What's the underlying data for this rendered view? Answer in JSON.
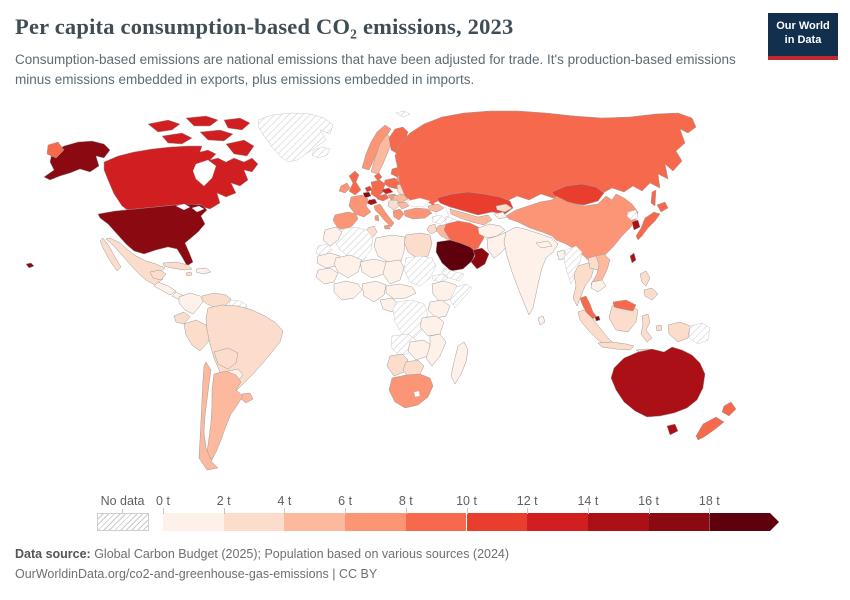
{
  "header": {
    "title": "Per capita consumption-based CO₂ emissions, 2023",
    "subtitle": "Consumption-based emissions are national emissions that have been adjusted for trade. It's production-based emissions minus emissions embedded in exports, plus emissions embedded in imports.",
    "logo": {
      "line1": "Our World",
      "line2": "in Data",
      "bg_color": "#12304e",
      "accent_color": "#c0282d"
    }
  },
  "chart_data": {
    "type": "choropleth_map",
    "title": "Per capita consumption-based CO₂ emissions, 2023",
    "unit": "t",
    "legend": {
      "no_data_label": "No data",
      "tick_labels": [
        "0 t",
        "2 t",
        "4 t",
        "6 t",
        "8 t",
        "10 t",
        "12 t",
        "14 t",
        "16 t",
        "18 t"
      ],
      "bin_ranges": [
        "0–2 t",
        "2–4 t",
        "4–6 t",
        "6–8 t",
        "8–10 t",
        "10–12 t",
        "12–14 t",
        "14–16 t",
        "16–18 t",
        "18+ t"
      ],
      "bin_colors": [
        "#fef1e9",
        "#fcdccb",
        "#fcb99e",
        "#fc9576",
        "#f7694c",
        "#e93e2e",
        "#d11e21",
        "#ab1016",
        "#8b0a12",
        "#5f000d"
      ],
      "open_ended_arrow": true,
      "no_data_pattern": "gray-diagonal-hatch"
    },
    "countries": [
      {
        "id": "usa",
        "name": "United States",
        "bin": 9
      },
      {
        "id": "canada",
        "name": "Canada",
        "bin": 7
      },
      {
        "id": "greenland",
        "name": "Greenland",
        "bin": "nodata"
      },
      {
        "id": "iceland",
        "name": "Iceland",
        "bin": "nodata"
      },
      {
        "id": "svalbard",
        "name": "Svalbard",
        "bin": "nodata"
      },
      {
        "id": "mexico",
        "name": "Mexico",
        "bin": 2
      },
      {
        "id": "guatemala",
        "name": "Guatemala",
        "bin": 1
      },
      {
        "id": "central-america",
        "name": "Honduras/Nicaragua",
        "bin": 1
      },
      {
        "id": "panama",
        "name": "Panama/Costa Rica",
        "bin": 3
      },
      {
        "id": "cuba",
        "name": "Cuba",
        "bin": 2
      },
      {
        "id": "hispaniola",
        "name": "Dominican Republic/Haiti",
        "bin": 1
      },
      {
        "id": "jamaica",
        "name": "Jamaica",
        "bin": 2
      },
      {
        "id": "colombia",
        "name": "Colombia",
        "bin": 1
      },
      {
        "id": "venezuela",
        "name": "Venezuela",
        "bin": 2
      },
      {
        "id": "guyanas",
        "name": "Guyana/Suriname",
        "bin": "nodata"
      },
      {
        "id": "ecuador",
        "name": "Ecuador",
        "bin": 2
      },
      {
        "id": "peru",
        "name": "Peru",
        "bin": 2
      },
      {
        "id": "brazil",
        "name": "Brazil",
        "bin": 2
      },
      {
        "id": "bolivia",
        "name": "Bolivia",
        "bin": 2
      },
      {
        "id": "paraguay",
        "name": "Paraguay",
        "bin": 1
      },
      {
        "id": "uruguay",
        "name": "Uruguay",
        "bin": 3
      },
      {
        "id": "argentina",
        "name": "Argentina",
        "bin": 3
      },
      {
        "id": "chile",
        "name": "Chile",
        "bin": 3
      },
      {
        "id": "norway",
        "name": "Norway",
        "bin": 4
      },
      {
        "id": "sweden",
        "name": "Sweden",
        "bin": 3
      },
      {
        "id": "finland",
        "name": "Finland",
        "bin": 5
      },
      {
        "id": "denmark",
        "name": "Denmark",
        "bin": 5
      },
      {
        "id": "uk",
        "name": "United Kingdom",
        "bin": 5
      },
      {
        "id": "ireland",
        "name": "Ireland",
        "bin": 4
      },
      {
        "id": "netherlands",
        "name": "Netherlands",
        "bin": 6
      },
      {
        "id": "belgium",
        "name": "Belgium",
        "bin": 9
      },
      {
        "id": "germany",
        "name": "Germany",
        "bin": 5
      },
      {
        "id": "france",
        "name": "France",
        "bin": 4
      },
      {
        "id": "switzerland",
        "name": "Switzerland",
        "bin": 8
      },
      {
        "id": "spain",
        "name": "Spain/Portugal",
        "bin": 4
      },
      {
        "id": "italy",
        "name": "Italy",
        "bin": 4
      },
      {
        "id": "austria",
        "name": "Austria",
        "bin": 5
      },
      {
        "id": "czechia",
        "name": "Czechia",
        "bin": 7
      },
      {
        "id": "poland",
        "name": "Poland",
        "bin": 5
      },
      {
        "id": "baltics",
        "name": "Baltic states",
        "bin": 5
      },
      {
        "id": "belarus",
        "name": "Belarus",
        "bin": 4
      },
      {
        "id": "ukraine",
        "name": "Ukraine",
        "bin": 2
      },
      {
        "id": "romania",
        "name": "Romania",
        "bin": 3
      },
      {
        "id": "hungary",
        "name": "Hungary",
        "bin": 4
      },
      {
        "id": "balkans",
        "name": "Western Balkans",
        "bin": 2
      },
      {
        "id": "greece",
        "name": "Greece",
        "bin": 4
      },
      {
        "id": "bulgaria",
        "name": "Bulgaria",
        "bin": 3
      },
      {
        "id": "turkey",
        "name": "Turkey",
        "bin": 4
      },
      {
        "id": "russia",
        "name": "Russia",
        "bin": 5
      },
      {
        "id": "kazakhstan",
        "name": "Kazakhstan",
        "bin": 6
      },
      {
        "id": "uzbekistan",
        "name": "Uzbekistan",
        "bin": 3
      },
      {
        "id": "turkmenistan",
        "name": "Turkmenistan",
        "bin": "nodata"
      },
      {
        "id": "kyrgyzstan",
        "name": "Kyrgyzstan",
        "bin": 2
      },
      {
        "id": "tajikistan",
        "name": "Tajikistan",
        "bin": 1
      },
      {
        "id": "afghanistan",
        "name": "Afghanistan",
        "bin": 1
      },
      {
        "id": "pakistan",
        "name": "Pakistan",
        "bin": 1
      },
      {
        "id": "caucasus",
        "name": "Georgia/Azerbaijan",
        "bin": 3
      },
      {
        "id": "iran",
        "name": "Iran",
        "bin": 5
      },
      {
        "id": "iraq",
        "name": "Iraq",
        "bin": 3
      },
      {
        "id": "syria",
        "name": "Syria",
        "bin": "nodata"
      },
      {
        "id": "levant",
        "name": "Jordan/Israel/Lebanon",
        "bin": 2
      },
      {
        "id": "saudi-arabia",
        "name": "Saudi Arabia",
        "bin": 10
      },
      {
        "id": "oman-uae",
        "name": "Oman/United Arab Emirates",
        "bin": 9
      },
      {
        "id": "yemen",
        "name": "Yemen",
        "bin": "nodata"
      },
      {
        "id": "egypt",
        "name": "Egypt",
        "bin": 2
      },
      {
        "id": "libya",
        "name": "Libya",
        "bin": 1
      },
      {
        "id": "tunisia",
        "name": "Tunisia",
        "bin": 2
      },
      {
        "id": "algeria",
        "name": "Algeria",
        "bin": "nodata"
      },
      {
        "id": "morocco",
        "name": "Morocco",
        "bin": 1
      },
      {
        "id": "western-sahara",
        "name": "Western Sahara",
        "bin": "nodata"
      },
      {
        "id": "mauritania",
        "name": "Mauritania",
        "bin": 1
      },
      {
        "id": "mali",
        "name": "Mali",
        "bin": 1
      },
      {
        "id": "niger",
        "name": "Niger",
        "bin": 1
      },
      {
        "id": "chad",
        "name": "Chad",
        "bin": 1
      },
      {
        "id": "sudan",
        "name": "Sudan",
        "bin": "nodata"
      },
      {
        "id": "eritrea",
        "name": "Eritrea",
        "bin": "nodata"
      },
      {
        "id": "ethiopia",
        "name": "Ethiopia",
        "bin": 1
      },
      {
        "id": "somalia",
        "name": "Somalia",
        "bin": "nodata"
      },
      {
        "id": "senegal-guinea",
        "name": "Senegal/Guinea",
        "bin": 1
      },
      {
        "id": "west-africa",
        "name": "Côte d'Ivoire/Ghana",
        "bin": 1
      },
      {
        "id": "nigeria",
        "name": "Nigeria",
        "bin": 1
      },
      {
        "id": "cameroon-car",
        "name": "Cameroon/Central African Rep.",
        "bin": 1
      },
      {
        "id": "congo-gabon",
        "name": "Congo/Gabon",
        "bin": 1
      },
      {
        "id": "drc",
        "name": "Democratic Republic of Congo",
        "bin": "nodata"
      },
      {
        "id": "kenya",
        "name": "Kenya",
        "bin": 1
      },
      {
        "id": "tanzania",
        "name": "Tanzania",
        "bin": 1
      },
      {
        "id": "angola",
        "name": "Angola",
        "bin": "nodata"
      },
      {
        "id": "zambia-zimbabwe",
        "name": "Zambia/Zimbabwe",
        "bin": 1
      },
      {
        "id": "mozambique",
        "name": "Mozambique",
        "bin": 1
      },
      {
        "id": "namibia",
        "name": "Namibia",
        "bin": 2
      },
      {
        "id": "botswana",
        "name": "Botswana",
        "bin": 2
      },
      {
        "id": "south-africa",
        "name": "South Africa",
        "bin": 4
      },
      {
        "id": "madagascar",
        "name": "Madagascar",
        "bin": 1
      },
      {
        "id": "india",
        "name": "India",
        "bin": 1
      },
      {
        "id": "nepal",
        "name": "Nepal",
        "bin": 1
      },
      {
        "id": "bangladesh",
        "name": "Bangladesh",
        "bin": 1
      },
      {
        "id": "sri-lanka",
        "name": "Sri Lanka",
        "bin": 1
      },
      {
        "id": "myanmar",
        "name": "Myanmar",
        "bin": "nodata"
      },
      {
        "id": "thailand",
        "name": "Thailand",
        "bin": 2
      },
      {
        "id": "laos",
        "name": "Laos",
        "bin": 2
      },
      {
        "id": "vietnam",
        "name": "Vietnam",
        "bin": 3
      },
      {
        "id": "cambodia",
        "name": "Cambodia",
        "bin": 1
      },
      {
        "id": "malaysia",
        "name": "Malaysia",
        "bin": 5
      },
      {
        "id": "singapore",
        "name": "Singapore",
        "bin": 9
      },
      {
        "id": "indonesia",
        "name": "Indonesia",
        "bin": 2
      },
      {
        "id": "png",
        "name": "Papua New Guinea",
        "bin": "nodata"
      },
      {
        "id": "philippines",
        "name": "Philippines",
        "bin": 2
      },
      {
        "id": "mongolia",
        "name": "Mongolia",
        "bin": 6
      },
      {
        "id": "china",
        "name": "China",
        "bin": 4
      },
      {
        "id": "north-korea",
        "name": "North Korea",
        "bin": "nodata"
      },
      {
        "id": "south-korea",
        "name": "South Korea",
        "bin": 8
      },
      {
        "id": "japan",
        "name": "Japan",
        "bin": 5
      },
      {
        "id": "taiwan",
        "name": "Taiwan",
        "bin": 8
      },
      {
        "id": "australia",
        "name": "Australia",
        "bin": 8
      },
      {
        "id": "new-zealand",
        "name": "New Zealand",
        "bin": 5
      }
    ]
  },
  "footer": {
    "datasource_label": "Data source:",
    "datasource_text": " Global Carbon Budget (2025); Population based on various sources (2024)",
    "link_line": "OurWorldinData.org/co2-and-greenhouse-gas-emissions | CC BY"
  }
}
